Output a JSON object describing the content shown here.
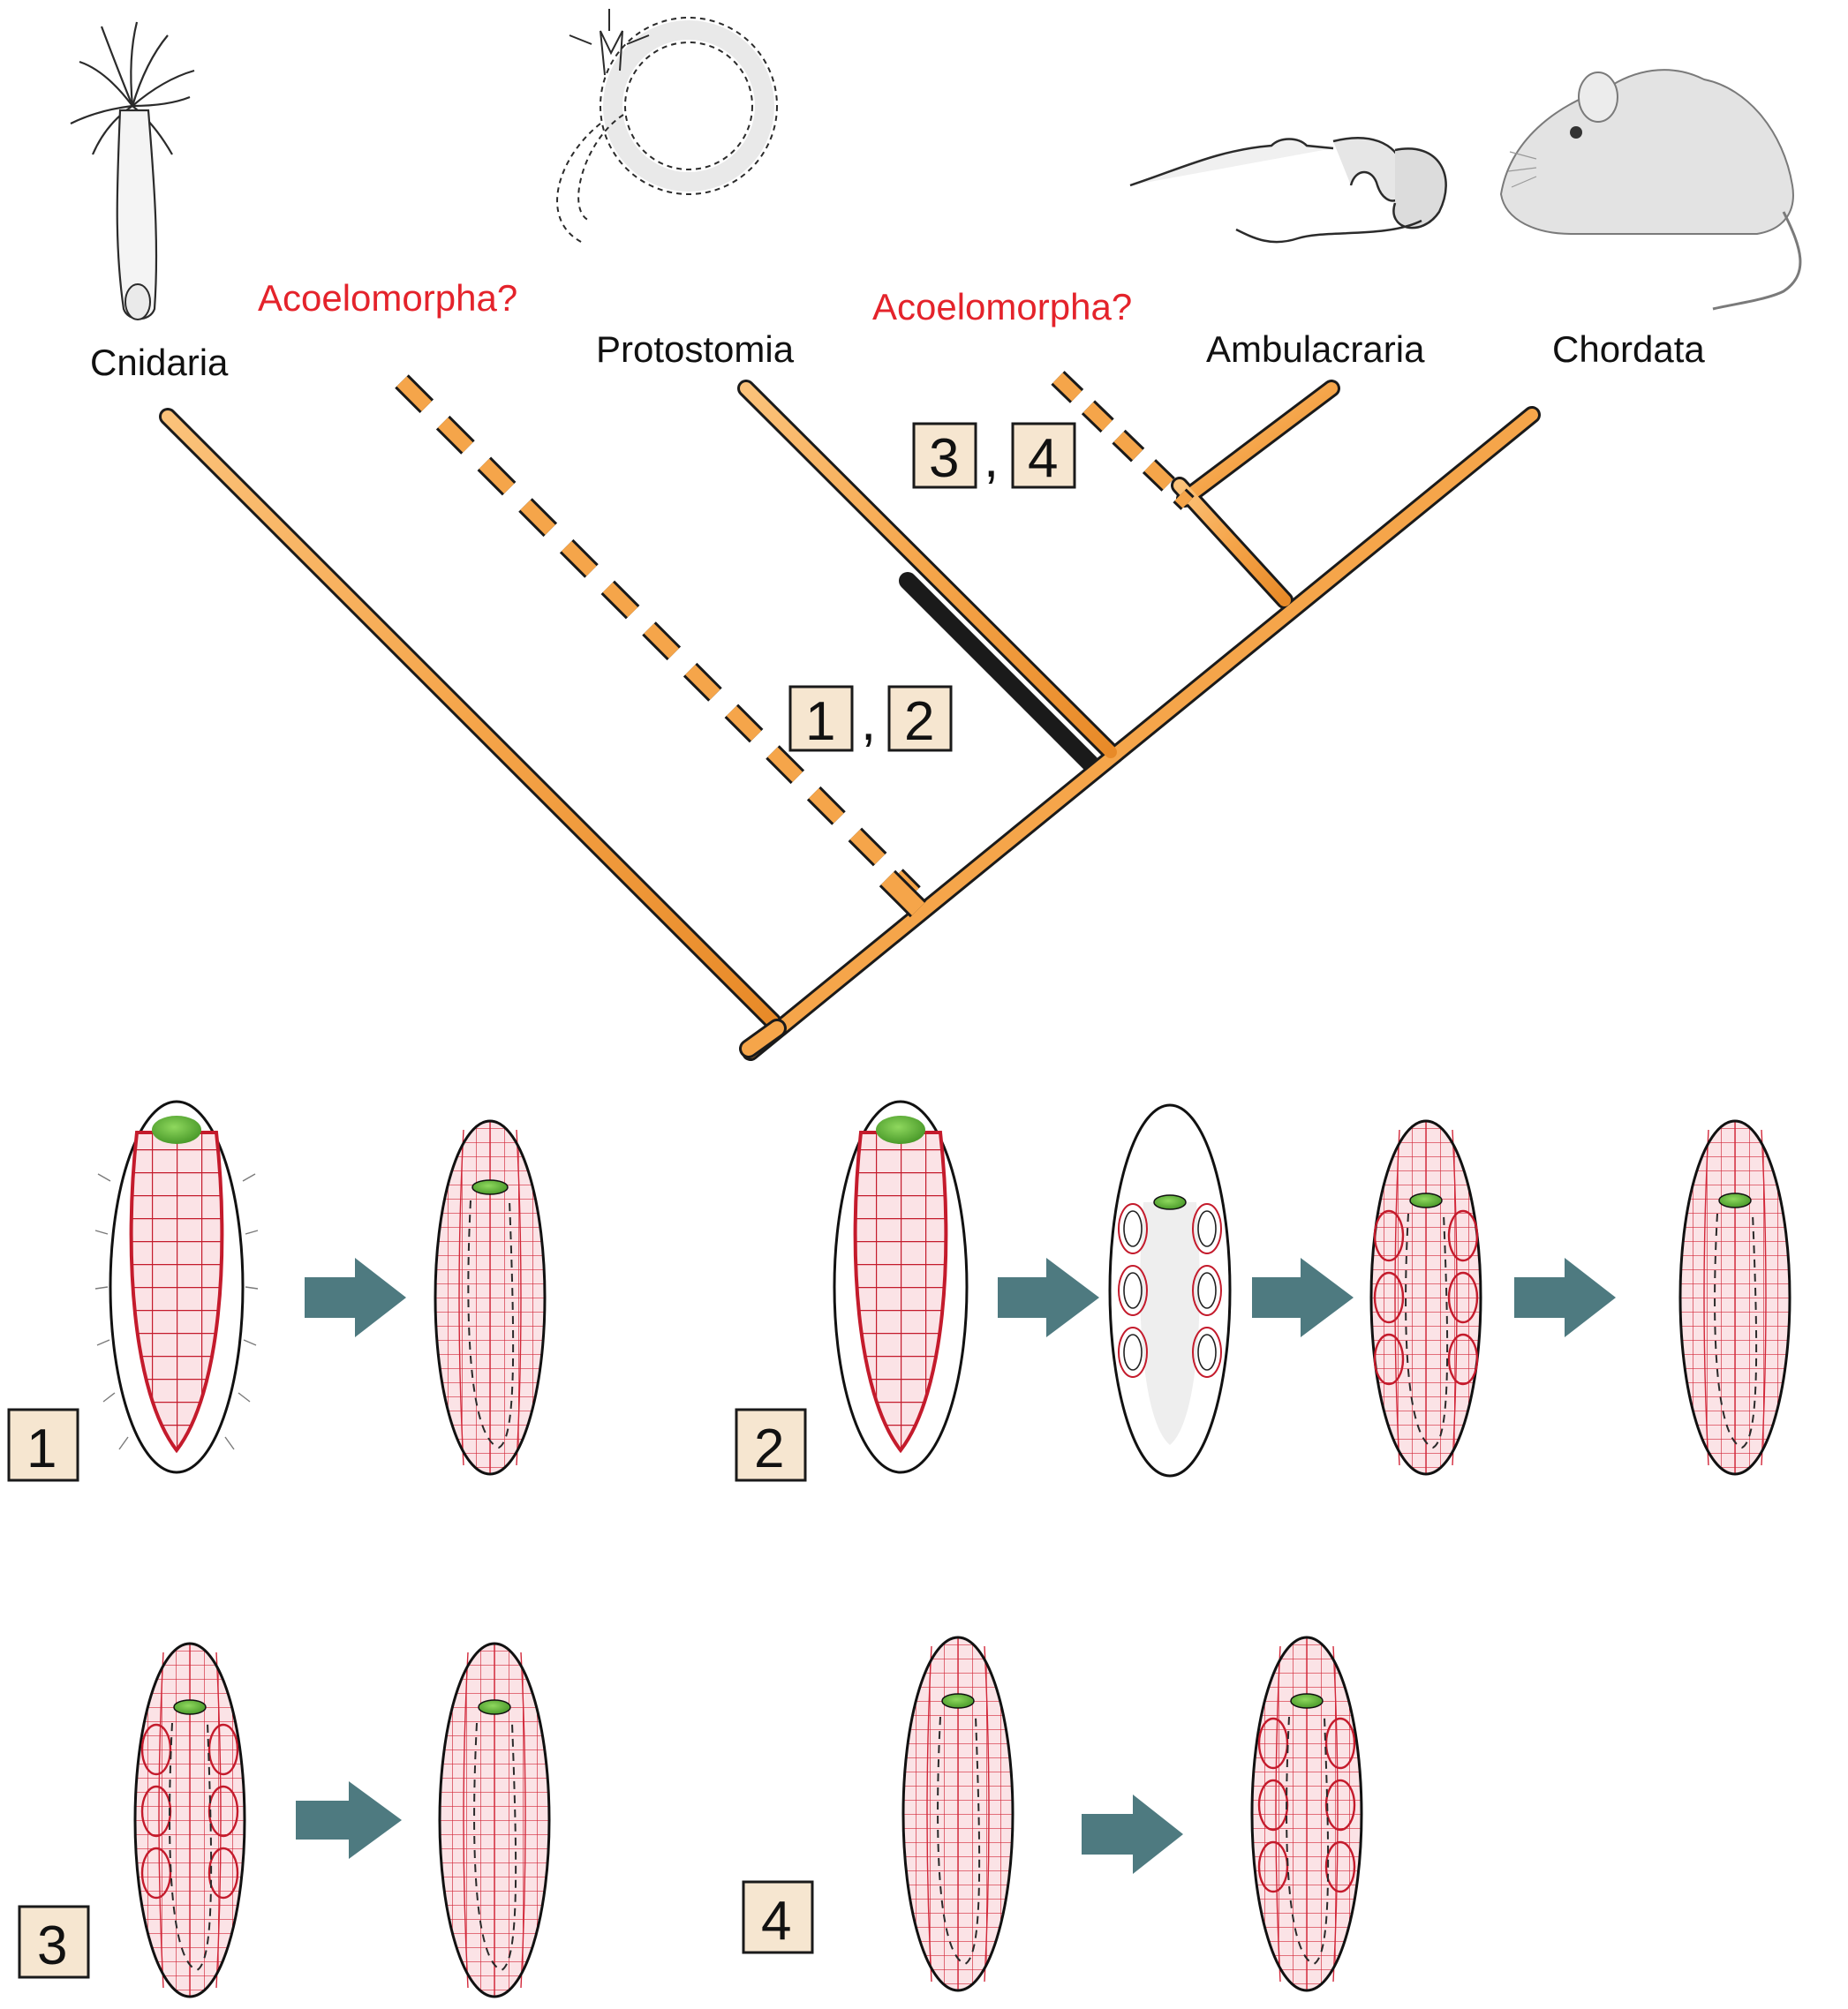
{
  "tree": {
    "taxa": [
      {
        "id": "cnidaria",
        "label": "Cnidaria",
        "uncertain": false
      },
      {
        "id": "acoel-basal",
        "label": "Acoelomorpha?",
        "uncertain": true
      },
      {
        "id": "protostomia",
        "label": "Protostomia",
        "uncertain": false
      },
      {
        "id": "acoel-deut",
        "label": "Acoelomorpha?",
        "uncertain": true
      },
      {
        "id": "ambulacraria",
        "label": "Ambulacraria",
        "uncertain": false
      },
      {
        "id": "chordata",
        "label": "Chordata",
        "uncertain": false
      }
    ],
    "scenario_marks": {
      "basal": {
        "first": "1",
        "second": "2",
        "separator": ","
      },
      "deuterostome": {
        "first": "3",
        "second": "4",
        "separator": ","
      }
    },
    "colors": {
      "branch": "#f5a54a",
      "branch_outline": "#1a1a1a",
      "uncertain_label": "#e4232b"
    }
  },
  "panels": [
    {
      "id": "panel-1",
      "label": "1"
    },
    {
      "id": "panel-2",
      "label": "2"
    },
    {
      "id": "panel-3",
      "label": "3"
    },
    {
      "id": "panel-4",
      "label": "4"
    }
  ],
  "legend_colors": {
    "muscle_grid": "#d2283a",
    "mouth": "#6cbf3e",
    "arrow": "#4e7a80",
    "label_box": "#f6e6d0"
  }
}
